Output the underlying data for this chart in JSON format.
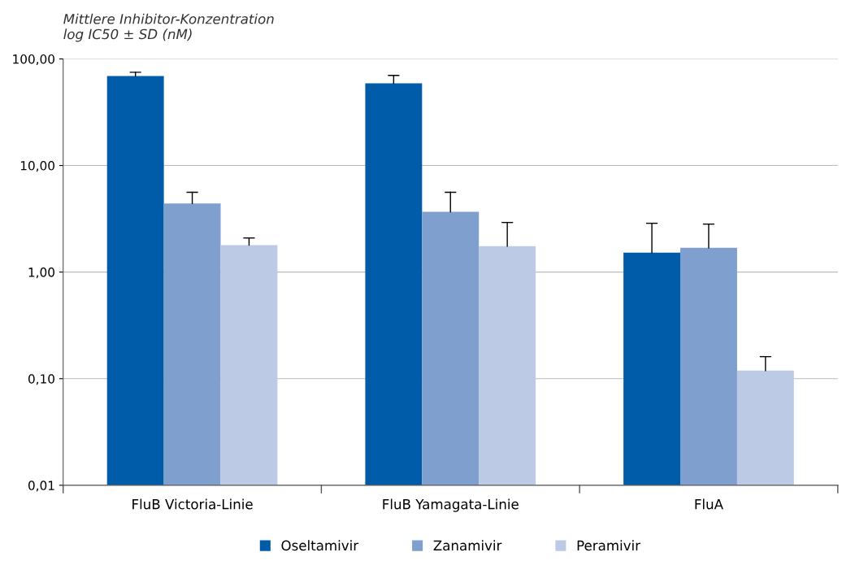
{
  "chart_data": {
    "type": "bar",
    "ylabel": "Mittlere Inhibitor-Konzentration\nlog IC50 ± SD (nM)",
    "categories": [
      "FluB Victoria-Linie",
      "FluB Yamagata-Linie",
      "FluA"
    ],
    "series": [
      {
        "name": "Oseltamivir",
        "color": "#005ca9",
        "values": [
          69,
          59,
          1.52
        ],
        "errors": [
          [
            69,
            75
          ],
          [
            59,
            70
          ],
          [
            1.52,
            2.87
          ]
        ]
      },
      {
        "name": "Zanamivir",
        "color": "#7f9fce",
        "values": [
          4.4,
          3.67,
          1.69
        ],
        "errors": [
          [
            4.4,
            5.6
          ],
          [
            3.67,
            5.6
          ],
          [
            1.69,
            2.82
          ]
        ]
      },
      {
        "name": "Peramivir",
        "color": "#bdcae5",
        "values": [
          1.79,
          1.75,
          0.119
        ],
        "errors": [
          [
            1.79,
            2.09
          ],
          [
            1.75,
            2.92
          ],
          [
            0.119,
            0.161
          ]
        ]
      }
    ],
    "log": "y",
    "ylim": [
      0.01,
      100
    ],
    "yticks": [
      {
        "value": 0.01,
        "label": "0,01"
      },
      {
        "value": 0.1,
        "label": "0,10"
      },
      {
        "value": 1,
        "label": "1,00"
      },
      {
        "value": 10,
        "label": "10,00"
      },
      {
        "value": 100,
        "label": "100,00"
      }
    ],
    "grid": "y",
    "legend": "bottom"
  }
}
